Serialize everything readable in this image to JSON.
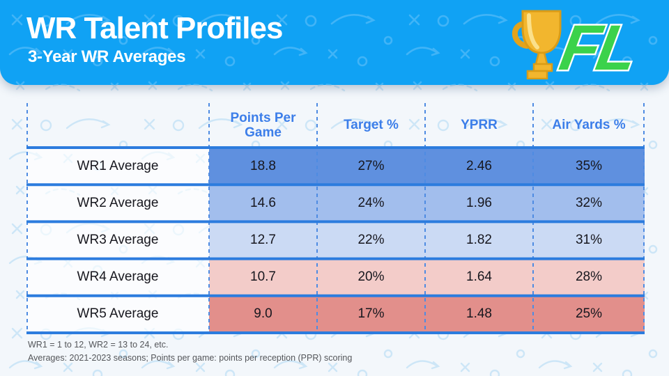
{
  "header": {
    "title": "WR Talent Profiles",
    "subtitle": "3-Year WR Averages",
    "bg_color": "#10A2F4",
    "logo": {
      "text": "FL",
      "trophy_color": "#F2B62E",
      "text_color": "#3BD24B"
    }
  },
  "table": {
    "columns": [
      "Points Per Game",
      "Target %",
      "YPRR",
      "Air Yards %"
    ],
    "header_text_color": "#3C7EE9",
    "line_color": "#2C7CDE",
    "dash_color": "#4E8BE2",
    "label_bg": "rgba(255,255,255,0.62)",
    "rows": [
      {
        "label": "WR1 Average",
        "values": [
          "18.8",
          "27%",
          "2.46",
          "35%"
        ],
        "color": "#5F90DF"
      },
      {
        "label": "WR2 Average",
        "values": [
          "14.6",
          "24%",
          "1.96",
          "32%"
        ],
        "color": "#A2BEED"
      },
      {
        "label": "WR3 Average",
        "values": [
          "12.7",
          "22%",
          "1.82",
          "31%"
        ],
        "color": "#CBDAF4"
      },
      {
        "label": "WR4 Average",
        "values": [
          "10.7",
          "20%",
          "1.64",
          "28%"
        ],
        "color": "#F3CCC9"
      },
      {
        "label": "WR5 Average",
        "values": [
          "9.0",
          "17%",
          "1.48",
          "25%"
        ],
        "color": "#E28F8B"
      }
    ]
  },
  "footnotes": [
    "WR1 = 1 to 12, WR2 = 13 to 24, etc.",
    "Averages: 2021-2023 seasons; Points per game: points per reception (PPR) scoring"
  ],
  "chart_data": {
    "type": "table",
    "title": "WR Talent Profiles",
    "subtitle": "3-Year WR Averages",
    "columns": [
      "",
      "Points Per Game",
      "Target %",
      "YPRR",
      "Air Yards %"
    ],
    "rows": [
      [
        "WR1 Average",
        18.8,
        "27%",
        2.46,
        "35%"
      ],
      [
        "WR2 Average",
        14.6,
        "24%",
        1.96,
        "32%"
      ],
      [
        "WR3 Average",
        12.7,
        "22%",
        1.82,
        "31%"
      ],
      [
        "WR4 Average",
        10.7,
        "20%",
        1.64,
        "28%"
      ],
      [
        "WR5 Average",
        9.0,
        "17%",
        1.48,
        "25%"
      ]
    ],
    "notes": [
      "WR1 = 1 to 12, WR2 = 13 to 24, etc.",
      "Averages: 2021-2023 seasons; Points per game: points per reception (PPR) scoring"
    ]
  }
}
